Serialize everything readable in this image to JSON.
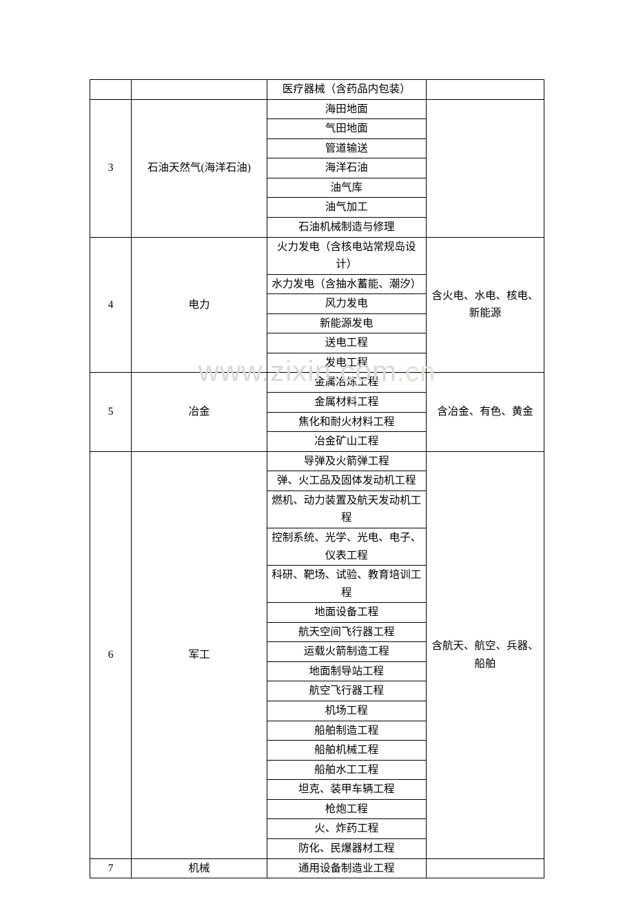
{
  "watermark": {
    "main": "www.zixin.com",
    "suffix": ".cn"
  },
  "columns": {
    "col1_width": 60,
    "col2_width": 195,
    "col3_width": 230,
    "col4_width": 170
  },
  "colors": {
    "background": "#ffffff",
    "border": "#000000",
    "text": "#000000",
    "watermark_main": "#d9d9d9",
    "watermark_suffix": "#e6e0d8"
  },
  "typography": {
    "cell_fontsize": 15.5,
    "watermark_fontsize": 42,
    "watermark_suffix_fontsize": 40
  },
  "rows": {
    "r0": {
      "c3": "医疗器械（含药品内包装）"
    },
    "r1": {
      "c1": "3",
      "c2": "石油天然气(海洋石油)",
      "c3": "海田地面"
    },
    "r2": {
      "c3": "气田地面"
    },
    "r3": {
      "c3": "管道输送"
    },
    "r4": {
      "c3": "海洋石油"
    },
    "r5": {
      "c3": "油气库"
    },
    "r6": {
      "c3": "油气加工"
    },
    "r7": {
      "c3": "石油机械制造与修理"
    },
    "r8": {
      "c1": "4",
      "c2": "电力",
      "c3": "火力发电（含核电站常规岛设计）",
      "c4": "含火电、水电、核电、新能源"
    },
    "r9": {
      "c3": "水力发电（含抽水蓄能、潮汐）"
    },
    "r10": {
      "c3": "风力发电"
    },
    "r11": {
      "c3": "新能源发电"
    },
    "r12": {
      "c3": "送电工程"
    },
    "r13": {
      "c3": "发电工程"
    },
    "r14": {
      "c1": "5",
      "c2": "冶金",
      "c3": "金属冶炼工程",
      "c4": "含冶金、有色、黄金"
    },
    "r15": {
      "c3": "金属材料工程"
    },
    "r16": {
      "c3": "焦化和耐火材料工程"
    },
    "r17": {
      "c3": "冶金矿山工程"
    },
    "r18": {
      "c1": "6",
      "c2": "军工",
      "c3": "导弹及火箭弹工程",
      "c4": "含航天、航空、兵器、船舶"
    },
    "r19": {
      "c3": "弹、火工品及固体发动机工程"
    },
    "r20": {
      "c3": "燃机、动力装置及航天发动机工程"
    },
    "r21": {
      "c3": "控制系统、光学、光电、电子、仪表工程"
    },
    "r22": {
      "c3": "科研、靶场、试验、教育培训工程"
    },
    "r23": {
      "c3": "地面设备工程"
    },
    "r24": {
      "c3": "航天空间飞行器工程"
    },
    "r25": {
      "c3": "运载火箭制造工程"
    },
    "r26": {
      "c3": "地面制导站工程"
    },
    "r27": {
      "c3": "航空飞行器工程"
    },
    "r28": {
      "c3": "机场工程"
    },
    "r29": {
      "c3": "船舶制造工程"
    },
    "r30": {
      "c3": "船舶机械工程"
    },
    "r31": {
      "c3": "船舶水工工程"
    },
    "r32": {
      "c3": "坦克、装甲车辆工程"
    },
    "r33": {
      "c3": "枪炮工程"
    },
    "r34": {
      "c3": "火、炸药工程"
    },
    "r35": {
      "c3": "防化、民爆器材工程"
    },
    "r36": {
      "c1": "7",
      "c2": "机械",
      "c3": "通用设备制造业工程"
    }
  }
}
